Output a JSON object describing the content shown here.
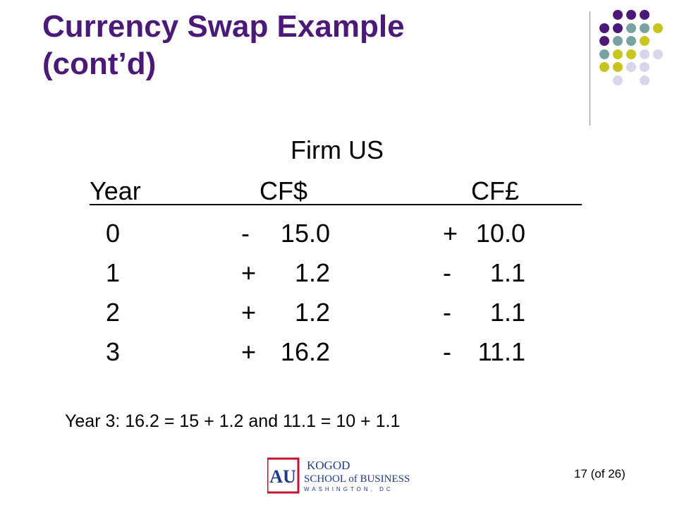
{
  "colors": {
    "title": "#4b1a78",
    "dot_purple": "#4b1a78",
    "dot_teal": "#79a3a0",
    "dot_lime": "#c7c51e",
    "dot_lavender": "#d7d6ea",
    "logo_red": "#c4122f",
    "logo_blue": "#1f3a8a"
  },
  "slide": {
    "title_line1": "Currency Swap Example",
    "title_line2": "(cont’d)",
    "firm": "Firm US",
    "headers": {
      "year": "Year",
      "cf_dollar": "CF$",
      "cf_pound": "CF£"
    },
    "rows": [
      {
        "year": "0",
        "cf_dollar_sign": "-",
        "cf_dollar": "15.0",
        "cf_pound_sign": "+",
        "cf_pound": "10.0"
      },
      {
        "year": "1",
        "cf_dollar_sign": "+",
        "cf_dollar": "1.2",
        "cf_pound_sign": "-",
        "cf_pound": "1.1"
      },
      {
        "year": "2",
        "cf_dollar_sign": "+",
        "cf_dollar": "1.2",
        "cf_pound_sign": "-",
        "cf_pound": "1.1"
      },
      {
        "year": "3",
        "cf_dollar_sign": "+",
        "cf_dollar": "16.2",
        "cf_pound_sign": "-",
        "cf_pound": "11.1"
      }
    ],
    "note": "Year 3: 16.2 = 15 + 1.2 and 11.1 = 10 + 1.1",
    "page_number": "17 (of 26)"
  },
  "logo": {
    "line1": "KOGOD",
    "line2": "SCHOOL of BUSINESS",
    "line3": "WASHINGTON, DC",
    "mark": "AU"
  }
}
